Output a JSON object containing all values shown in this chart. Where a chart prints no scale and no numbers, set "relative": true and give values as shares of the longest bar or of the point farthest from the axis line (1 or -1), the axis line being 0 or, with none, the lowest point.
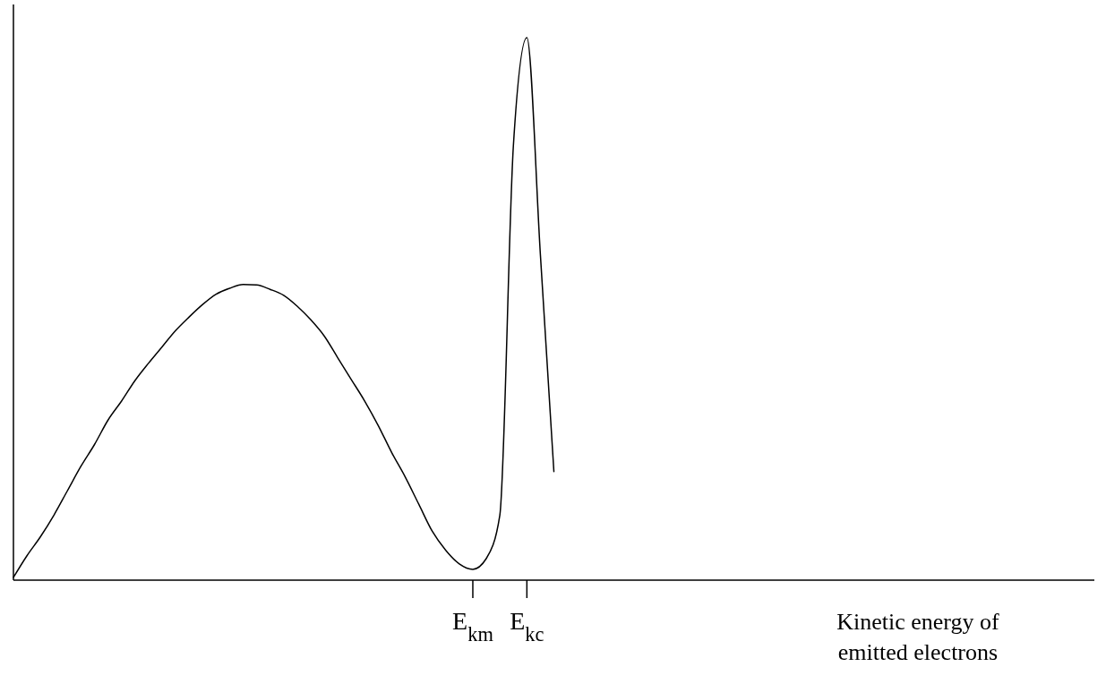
{
  "chart_data": {
    "type": "line",
    "relative": true,
    "xlabel": "Kinetic energy of emitted electrons",
    "tick_labels": "x",
    "line_style": "solid",
    "categories": [
      null,
      null,
      null,
      null,
      null,
      null,
      null,
      null,
      null,
      null,
      null,
      null,
      null,
      null,
      null,
      null,
      null,
      null,
      null,
      null,
      null,
      null,
      null,
      null,
      null,
      null,
      null,
      null,
      null,
      null,
      null,
      null,
      null,
      null,
      "E$_{km}$",
      null,
      null,
      null,
      "E$_{kc}$",
      null,
      null,
      null,
      null,
      null,
      null,
      null,
      null,
      null,
      null,
      null,
      null,
      null,
      null,
      null,
      null,
      null,
      null,
      null,
      null,
      null,
      null,
      null,
      null,
      null,
      null,
      null,
      null,
      null,
      null,
      null,
      null,
      null,
      null,
      null,
      null,
      null,
      null,
      null,
      null,
      null,
      null
    ],
    "series": [
      {
        "color": "#000000",
        "values": [
          0.005,
          0.045,
          0.08,
          0.12,
          0.165,
          0.21,
          0.25,
          0.295,
          0.33,
          0.368,
          0.4,
          0.43,
          0.46,
          0.485,
          0.508,
          0.527,
          0.538,
          0.545,
          0.544,
          0.536,
          0.525,
          0.505,
          0.48,
          0.45,
          0.41,
          0.37,
          0.33,
          0.285,
          0.235,
          0.19,
          0.14,
          0.09,
          0.055,
          0.03,
          0.02,
          0.04,
          0.12,
          0.8,
          1,
          0.6,
          0.2,
          null,
          null,
          null,
          null,
          null,
          null,
          null,
          null,
          null,
          null,
          null,
          null,
          null,
          null,
          null,
          null,
          null,
          null,
          null,
          null,
          null,
          null,
          null,
          null,
          null,
          null,
          null,
          null,
          null,
          null,
          null,
          null,
          null,
          null,
          null,
          null,
          null,
          null,
          null,
          null
        ]
      }
    ]
  }
}
